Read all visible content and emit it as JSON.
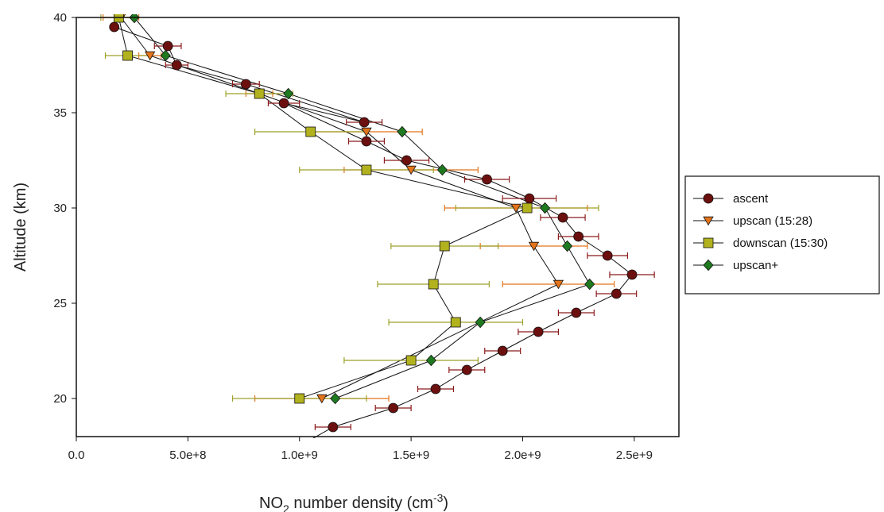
{
  "chart_data": {
    "type": "scatter",
    "xlabel": {
      "main": "NO",
      "sub": "2",
      "rest": " number density (cm",
      "sup": "-3",
      "close": ")"
    },
    "ylabel": "Altitude (km)",
    "xlim": [
      0,
      2700000000
    ],
    "ylim": [
      18,
      40
    ],
    "x_ticks": [
      {
        "value": 0,
        "label": "0.0"
      },
      {
        "value": 500000000,
        "label": "5.0e+8"
      },
      {
        "value": 1000000000,
        "label": "1.0e+9"
      },
      {
        "value": 1500000000,
        "label": "1.5e+9"
      },
      {
        "value": 2000000000,
        "label": "2.0e+9"
      },
      {
        "value": 2500000000,
        "label": "2.5e+9"
      }
    ],
    "y_ticks": [
      {
        "value": 20,
        "label": "20"
      },
      {
        "value": 25,
        "label": "25"
      },
      {
        "value": 30,
        "label": "30"
      },
      {
        "value": 35,
        "label": "35"
      },
      {
        "value": 40,
        "label": "40"
      }
    ],
    "grid": false,
    "legend_position": "right",
    "series": [
      {
        "name": "ascent",
        "marker": "circle",
        "color": "#6b0f0f",
        "error_color": "#8b1a1a",
        "points": [
          {
            "x": 1000000000,
            "y": 17.5,
            "err": 0
          },
          {
            "x": 1150000000,
            "y": 18.5,
            "err": 80000000
          },
          {
            "x": 1420000000,
            "y": 19.5,
            "err": 80000000
          },
          {
            "x": 1610000000,
            "y": 20.5,
            "err": 80000000
          },
          {
            "x": 1750000000,
            "y": 21.5,
            "err": 80000000
          },
          {
            "x": 1910000000,
            "y": 22.5,
            "err": 80000000
          },
          {
            "x": 2070000000,
            "y": 23.5,
            "err": 90000000
          },
          {
            "x": 2240000000,
            "y": 24.5,
            "err": 80000000
          },
          {
            "x": 2420000000,
            "y": 25.5,
            "err": 90000000
          },
          {
            "x": 2490000000,
            "y": 26.5,
            "err": 100000000
          },
          {
            "x": 2380000000,
            "y": 27.5,
            "err": 90000000
          },
          {
            "x": 2250000000,
            "y": 28.5,
            "err": 90000000
          },
          {
            "x": 2180000000,
            "y": 29.5,
            "err": 100000000
          },
          {
            "x": 2030000000,
            "y": 30.5,
            "err": 120000000
          },
          {
            "x": 1840000000,
            "y": 31.5,
            "err": 100000000
          },
          {
            "x": 1480000000,
            "y": 32.5,
            "err": 100000000
          },
          {
            "x": 1300000000,
            "y": 33.5,
            "err": 80000000
          },
          {
            "x": 930000000,
            "y": 35.5,
            "err": 70000000
          },
          {
            "x": 1290000000,
            "y": 34.5,
            "err": 80000000
          },
          {
            "x": 760000000,
            "y": 36.5,
            "err": 60000000
          },
          {
            "x": 450000000,
            "y": 37.5,
            "err": 50000000
          },
          {
            "x": 410000000,
            "y": 38.5,
            "err": 60000000
          },
          {
            "x": 170000000,
            "y": 39.5,
            "err": 0
          }
        ]
      },
      {
        "name": "upscan (15:28)",
        "marker": "triangle-down",
        "color": "#e4741b",
        "error_color": "#e4741b",
        "points": [
          {
            "x": 1100000000,
            "y": 20,
            "err": 300000000
          },
          {
            "x": 2160000000,
            "y": 26,
            "err": 250000000
          },
          {
            "x": 2050000000,
            "y": 28,
            "err": 240000000
          },
          {
            "x": 1970000000,
            "y": 30,
            "err": 320000000
          },
          {
            "x": 1500000000,
            "y": 32,
            "err": 300000000
          },
          {
            "x": 1300000000,
            "y": 34,
            "err": 250000000
          },
          {
            "x": 820000000,
            "y": 36,
            "err": 60000000
          },
          {
            "x": 330000000,
            "y": 38,
            "err": 50000000
          },
          {
            "x": 200000000,
            "y": 40,
            "err": 80000000
          }
        ]
      },
      {
        "name": "downscan (15:30)",
        "marker": "square",
        "color": "#b2b21e",
        "error_color": "#9ea12a",
        "points": [
          {
            "x": 1000000000,
            "y": 20,
            "err": 300000000
          },
          {
            "x": 1500000000,
            "y": 22,
            "err": 300000000
          },
          {
            "x": 1700000000,
            "y": 24,
            "err": 300000000
          },
          {
            "x": 1600000000,
            "y": 26,
            "err": 250000000
          },
          {
            "x": 1650000000,
            "y": 28,
            "err": 240000000
          },
          {
            "x": 2020000000,
            "y": 30,
            "err": 320000000
          },
          {
            "x": 1300000000,
            "y": 32,
            "err": 300000000
          },
          {
            "x": 1050000000,
            "y": 34,
            "err": 250000000
          },
          {
            "x": 820000000,
            "y": 36,
            "err": 150000000
          },
          {
            "x": 230000000,
            "y": 38,
            "err": 100000000
          },
          {
            "x": 190000000,
            "y": 40,
            "err": 80000000
          }
        ]
      },
      {
        "name": "upscan+",
        "marker": "diamond",
        "color": "#1f7a1f",
        "error_color": "#1f7a1f",
        "points": [
          {
            "x": 1160000000,
            "y": 20,
            "err": 0
          },
          {
            "x": 1590000000,
            "y": 22,
            "err": 0
          },
          {
            "x": 1810000000,
            "y": 24,
            "err": 0
          },
          {
            "x": 2300000000,
            "y": 26,
            "err": 0
          },
          {
            "x": 2200000000,
            "y": 28,
            "err": 0
          },
          {
            "x": 2100000000,
            "y": 30,
            "err": 0
          },
          {
            "x": 1640000000,
            "y": 32,
            "err": 0
          },
          {
            "x": 1460000000,
            "y": 34,
            "err": 0
          },
          {
            "x": 950000000,
            "y": 36,
            "err": 0
          },
          {
            "x": 400000000,
            "y": 38,
            "err": 0
          },
          {
            "x": 260000000,
            "y": 40,
            "err": 0
          }
        ]
      }
    ]
  }
}
